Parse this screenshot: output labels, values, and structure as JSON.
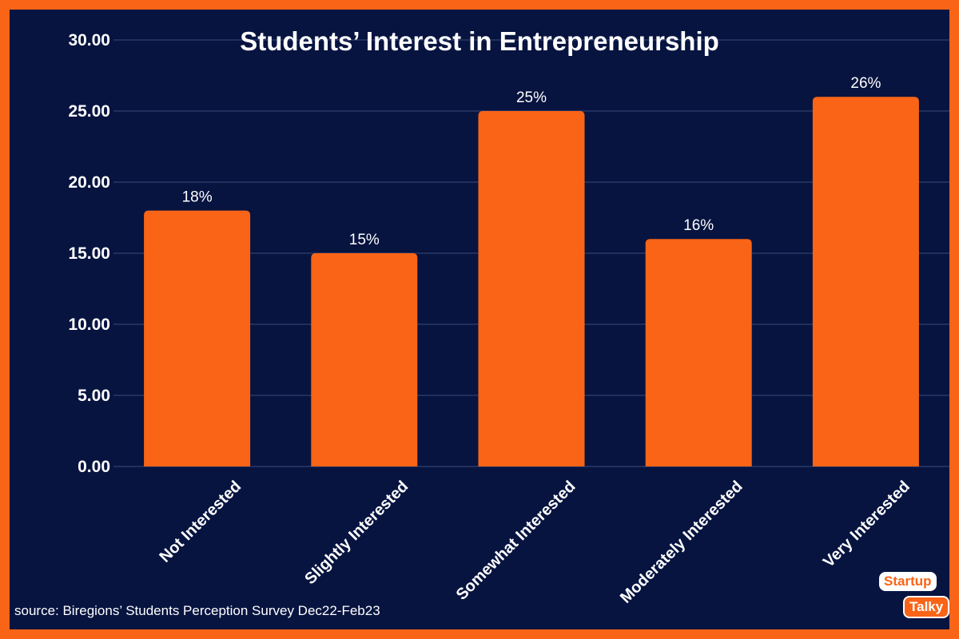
{
  "chart_data": {
    "type": "bar",
    "title": "Students’ Interest in Entrepreneurship",
    "categories": [
      "Not Interested",
      "Slightly Interested",
      "Somewhat Interested",
      "Moderately Interested",
      "Very Interested"
    ],
    "values": [
      18,
      15,
      25,
      16,
      26
    ],
    "data_labels": [
      "18%",
      "15%",
      "25%",
      "16%",
      "26%"
    ],
    "ylim": [
      0,
      30
    ],
    "yticks": [
      "0.00",
      "5.00",
      "10.00",
      "15.00",
      "20.00",
      "25.00",
      "30.00"
    ],
    "grid": true,
    "legend": "none",
    "colors": {
      "bar": "#f96417",
      "background": "#071440",
      "border": "#f96417",
      "grid": "#3a4a78",
      "text": "#ffffff"
    }
  },
  "source": "source: Biregions’ Students Perception Survey Dec22-Feb23",
  "logo": {
    "line1": "Startup",
    "line2": "Talky"
  }
}
